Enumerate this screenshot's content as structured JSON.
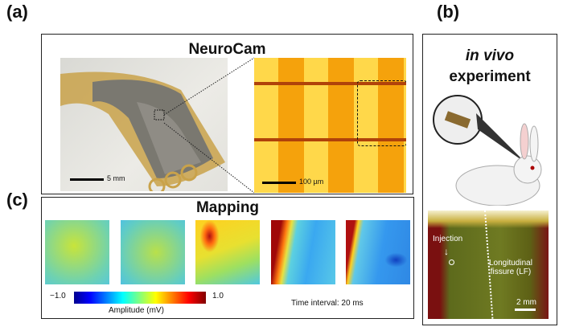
{
  "panels": {
    "a": {
      "label": "(a)",
      "title": "NeuroCam",
      "photo_scale": "5 mm",
      "micro_scale": "100 µm"
    },
    "b": {
      "label": "(b)",
      "title_italic": "in vivo",
      "title": "experiment",
      "annotation_injection": "Injection",
      "annotation_lf_line1": "Longitudinal",
      "annotation_lf_line2": "fissure (LF)",
      "scale": "2 mm"
    },
    "c": {
      "label": "(c)",
      "title": "Mapping",
      "colorbar_min": "−1.0",
      "colorbar_max": "1.0",
      "colorbar_label": "Amplitude (mV)",
      "time_interval": "Time interval: 20 ms",
      "colormap": "jet",
      "frame_count": 5
    }
  }
}
